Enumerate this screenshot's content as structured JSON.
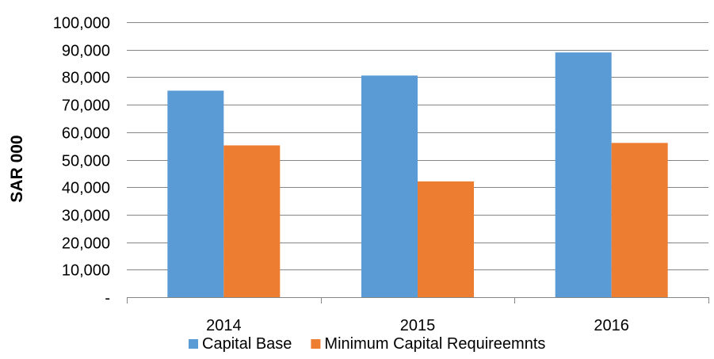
{
  "chart_data": {
    "type": "bar",
    "categories": [
      "2014",
      "2015",
      "2016"
    ],
    "series": [
      {
        "name": "Capital Base",
        "color": "#5B9BD5",
        "values": [
          75100,
          80600,
          89000
        ]
      },
      {
        "name": "Minimum Capital Requireemnts",
        "color": "#ED7D31",
        "values": [
          55200,
          42100,
          56100
        ]
      }
    ],
    "ylabel": "SAR 000",
    "xlabel": "",
    "ylim": [
      0,
      100000
    ],
    "yticks": [
      0,
      10000,
      20000,
      30000,
      40000,
      50000,
      60000,
      70000,
      80000,
      90000,
      100000
    ],
    "ytick_labels": [
      "-",
      "10,000",
      "20,000",
      "30,000",
      "40,000",
      "50,000",
      "60,000",
      "70,000",
      "80,000",
      "90,000",
      "100,000"
    ],
    "grid": true,
    "legend_position": "bottom"
  }
}
